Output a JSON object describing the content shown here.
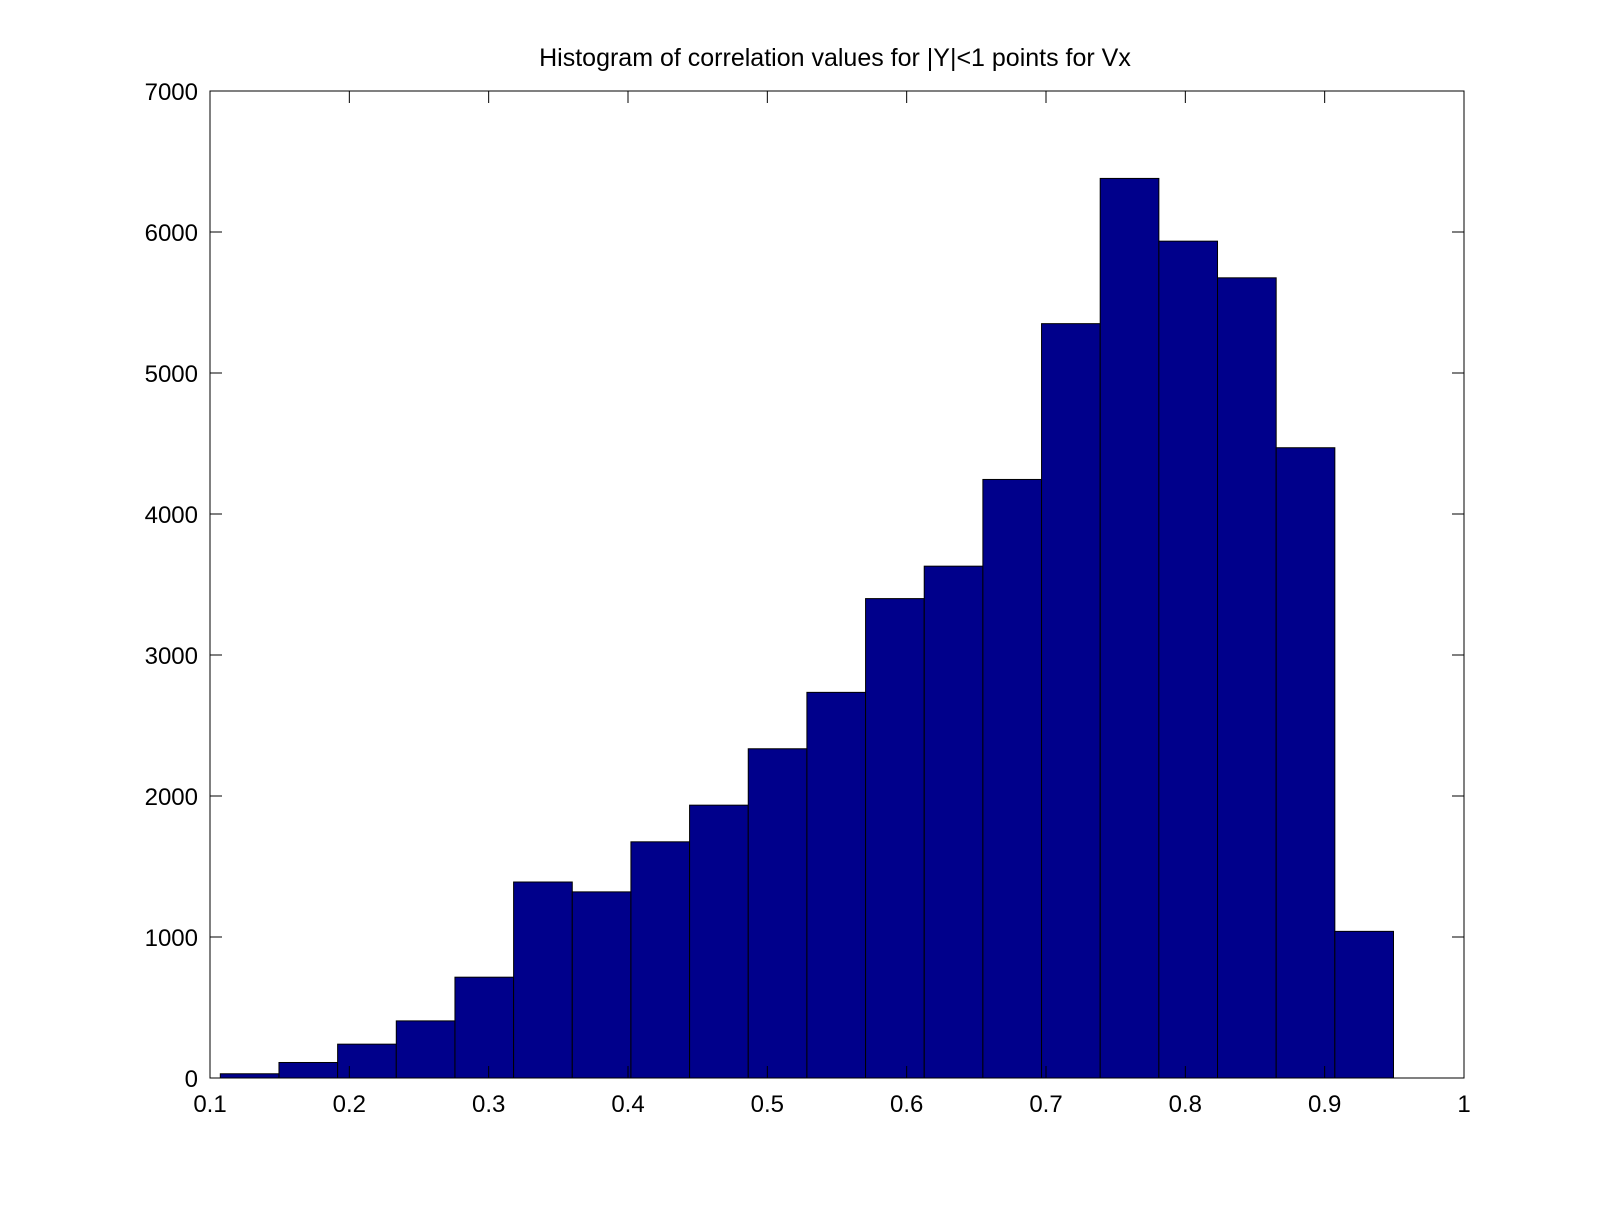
{
  "chart_data": {
    "type": "bar",
    "title": "Histogram of correlation values for |Y|<1 points for Vx",
    "xlabel": "",
    "ylabel": "",
    "xlim": [
      0.1,
      1
    ],
    "ylim": [
      0,
      7000
    ],
    "x_ticks": [
      0.1,
      0.2,
      0.3,
      0.4,
      0.5,
      0.6,
      0.7,
      0.8,
      0.9,
      1
    ],
    "x_tick_labels": [
      "0.1",
      "0.2",
      "0.3",
      "0.4",
      "0.5",
      "0.6",
      "0.7",
      "0.8",
      "0.9",
      "1"
    ],
    "y_ticks": [
      0,
      1000,
      2000,
      3000,
      4000,
      5000,
      6000,
      7000
    ],
    "y_tick_labels": [
      "0",
      "1000",
      "2000",
      "3000",
      "4000",
      "5000",
      "6000",
      "7000"
    ],
    "bin_edges": [
      0.1074,
      0.1495,
      0.1916,
      0.2337,
      0.2758,
      0.3179,
      0.36,
      0.4021,
      0.4442,
      0.4863,
      0.5284,
      0.5705,
      0.6126,
      0.6547,
      0.6968,
      0.7389,
      0.781,
      0.8231,
      0.8652,
      0.9073,
      0.9494
    ],
    "values": [
      30,
      110,
      240,
      405,
      715,
      1390,
      1320,
      1675,
      1935,
      2335,
      2735,
      3400,
      3630,
      4245,
      5350,
      6380,
      5935,
      5675,
      4470,
      1040
    ],
    "bar_color": "#00008b",
    "grid": false
  }
}
